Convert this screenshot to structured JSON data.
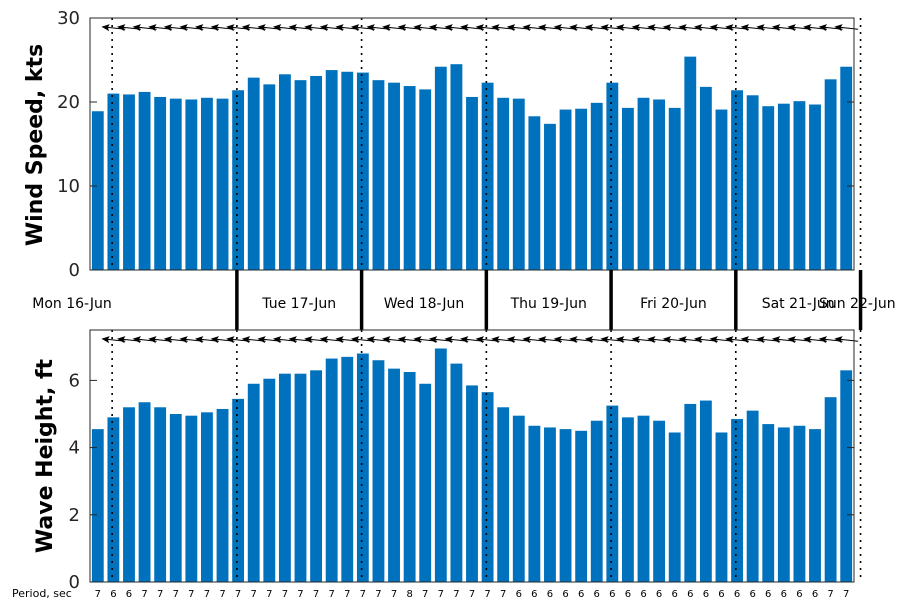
{
  "chart_data": [
    {
      "type": "bar",
      "ylabel": "Wind Speed, kts",
      "ylim": [
        0,
        30
      ],
      "yticks": [
        0,
        10,
        20,
        30
      ],
      "grid": false,
      "bar_color": "#0072BD",
      "values": [
        18.9,
        21.0,
        20.9,
        21.2,
        20.6,
        20.4,
        20.3,
        20.5,
        20.4,
        21.4,
        22.9,
        22.1,
        23.3,
        22.6,
        23.1,
        23.8,
        23.6,
        23.5,
        22.6,
        22.3,
        21.9,
        21.5,
        24.2,
        24.5,
        20.6,
        22.3,
        20.5,
        20.4,
        18.3,
        17.4,
        19.1,
        19.2,
        19.9,
        22.3,
        19.3,
        20.5,
        20.3,
        19.3,
        25.4,
        21.8,
        19.1,
        21.4,
        20.8,
        19.5,
        19.8,
        20.1,
        19.7,
        22.7,
        24.2
      ]
    },
    {
      "type": "bar",
      "ylabel": "Wave Height, ft",
      "ylim": [
        0,
        7.5
      ],
      "yticks": [
        0,
        2,
        4,
        6
      ],
      "grid": false,
      "bar_color": "#0072BD",
      "values": [
        4.55,
        4.9,
        5.2,
        5.35,
        5.2,
        5.0,
        4.95,
        5.05,
        5.15,
        5.45,
        5.9,
        6.05,
        6.2,
        6.2,
        6.3,
        6.65,
        6.7,
        6.8,
        6.6,
        6.35,
        6.25,
        5.9,
        6.95,
        6.5,
        5.85,
        5.65,
        5.2,
        4.95,
        4.65,
        4.6,
        4.55,
        4.5,
        4.8,
        5.25,
        4.9,
        4.95,
        4.8,
        4.45,
        5.3,
        5.4,
        4.45,
        4.85,
        5.1,
        4.7,
        4.6,
        4.65,
        4.55,
        5.5,
        6.3
      ]
    }
  ],
  "days": [
    "Mon 16-Jun",
    "Tue 17-Jun",
    "Wed 18-Jun",
    "Thu 19-Jun",
    "Fri 20-Jun",
    "Sat 21-Jun",
    "Sun 22-Jun"
  ],
  "period_title": "Period, sec",
  "periods": [
    "7",
    "6",
    "6",
    "7",
    "7",
    "7",
    "7",
    "7",
    "7",
    "7",
    "7",
    "7",
    "7",
    "7",
    "7",
    "7",
    "7",
    "7",
    "7",
    "7",
    "8",
    "7",
    "7",
    "7",
    "7",
    "7",
    "7",
    "6",
    "6",
    "6",
    "6",
    "6",
    "6",
    "6",
    "6",
    "6",
    "6",
    "6",
    "6",
    "6",
    "6",
    "6",
    "6",
    "6",
    "6",
    "6",
    "6",
    "7",
    "7"
  ],
  "wind_direction_icon": "left-arrow-icon"
}
